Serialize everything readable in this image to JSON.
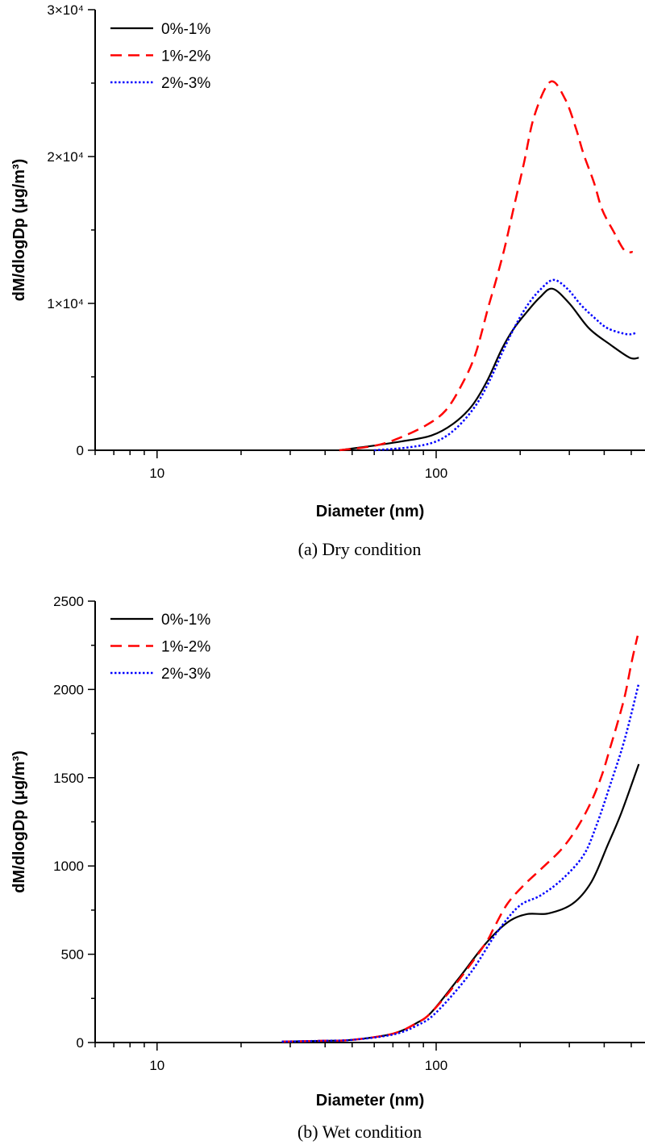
{
  "chart_data": [
    {
      "type": "line",
      "caption": "(a) Dry condition",
      "xlabel": "Diameter (nm)",
      "ylabel": "dM/dlogDp (μg/m³)",
      "xscale": "log",
      "xlim": [
        6,
        560
      ],
      "ylim": [
        0,
        30000
      ],
      "xticks": [
        10,
        100
      ],
      "xtick_labels": [
        "10",
        "100"
      ],
      "yticks": [
        0,
        10000,
        20000,
        30000
      ],
      "ytick_labels": [
        "0",
        "1×10⁴",
        "2×10⁴",
        "3×10⁴"
      ],
      "grid": false,
      "legend_position": "top-left",
      "series": [
        {
          "name": "0%-1%",
          "color": "#000000",
          "style": "solid",
          "x": [
            45,
            59,
            75,
            96,
            115,
            134,
            152,
            172,
            190,
            211,
            235,
            261,
            300,
            353,
            420,
            494,
            532
          ],
          "y": [
            0,
            300,
            600,
            1000,
            1800,
            3000,
            4700,
            6900,
            8300,
            9400,
            10400,
            11000,
            10000,
            8300,
            7200,
            6300,
            6300
          ]
        },
        {
          "name": "1%-2%",
          "color": "#ff0000",
          "style": "dashed",
          "x": [
            45,
            60,
            73,
            92,
            108,
            123,
            138,
            154,
            164,
            176,
            188,
            206,
            225,
            257,
            290,
            317,
            337,
            368,
            393,
            432,
            473,
            506
          ],
          "y": [
            0,
            300,
            800,
            1700,
            2700,
            4400,
            6500,
            9800,
            11600,
            13800,
            16200,
            19500,
            22800,
            25100,
            23900,
            21900,
            20200,
            18200,
            16400,
            14900,
            13600,
            13500
          ]
        },
        {
          "name": "2%-3%",
          "color": "#0000ff",
          "style": "dotted",
          "x": [
            60,
            80,
            100,
            118,
            138,
            155,
            172,
            190,
            211,
            235,
            263,
            295,
            330,
            370,
            412,
            483,
            522
          ],
          "y": [
            0,
            200,
            600,
            1500,
            3000,
            4700,
            6600,
            8300,
            9800,
            10900,
            11600,
            11000,
            9900,
            9000,
            8300,
            7900,
            8000
          ]
        }
      ]
    },
    {
      "type": "line",
      "caption": "(b) Wet condition",
      "xlabel": "Diameter (nm)",
      "ylabel": "dM/dlogDp (μg/m³)",
      "xscale": "log",
      "xlim": [
        6,
        560
      ],
      "ylim": [
        0,
        2500
      ],
      "xticks": [
        10,
        100
      ],
      "xtick_labels": [
        "10",
        "100"
      ],
      "yticks": [
        0,
        500,
        1000,
        1500,
        2000,
        2500
      ],
      "ytick_labels": [
        "0",
        "500",
        "1000",
        "1500",
        "2000",
        "2500"
      ],
      "grid": false,
      "legend_position": "top-left",
      "series": [
        {
          "name": "0%-1%",
          "color": "#000000",
          "style": "solid",
          "x": [
            28,
            40,
            50,
            70,
            85,
            96,
            120,
            150,
            180,
            211,
            252,
            308,
            360,
            412,
            461,
            532
          ],
          "y": [
            5,
            10,
            15,
            50,
            110,
            170,
            360,
            558,
            680,
            727,
            731,
            786,
            910,
            1120,
            1302,
            1577
          ]
        },
        {
          "name": "1%-2%",
          "color": "#ff0000",
          "style": "dashed",
          "x": [
            28,
            40,
            50,
            70,
            85,
            96,
            120,
            150,
            161,
            180,
            206,
            241,
            282,
            321,
            360,
            393,
            420,
            449,
            476,
            502,
            527
          ],
          "y": [
            5,
            10,
            15,
            50,
            110,
            170,
            350,
            560,
            649,
            786,
            891,
            992,
            1097,
            1220,
            1367,
            1518,
            1669,
            1824,
            1975,
            2158,
            2304
          ]
        },
        {
          "name": "2%-3%",
          "color": "#0000ff",
          "style": "dotted",
          "x": [
            28,
            40,
            50,
            70,
            85,
            100,
            132,
            164,
            198,
            236,
            282,
            337,
            375,
            420,
            473,
            532
          ],
          "y": [
            5,
            10,
            15,
            45,
            95,
            170,
            389,
            617,
            772,
            832,
            923,
            1060,
            1229,
            1458,
            1714,
            2034
          ]
        }
      ]
    }
  ]
}
